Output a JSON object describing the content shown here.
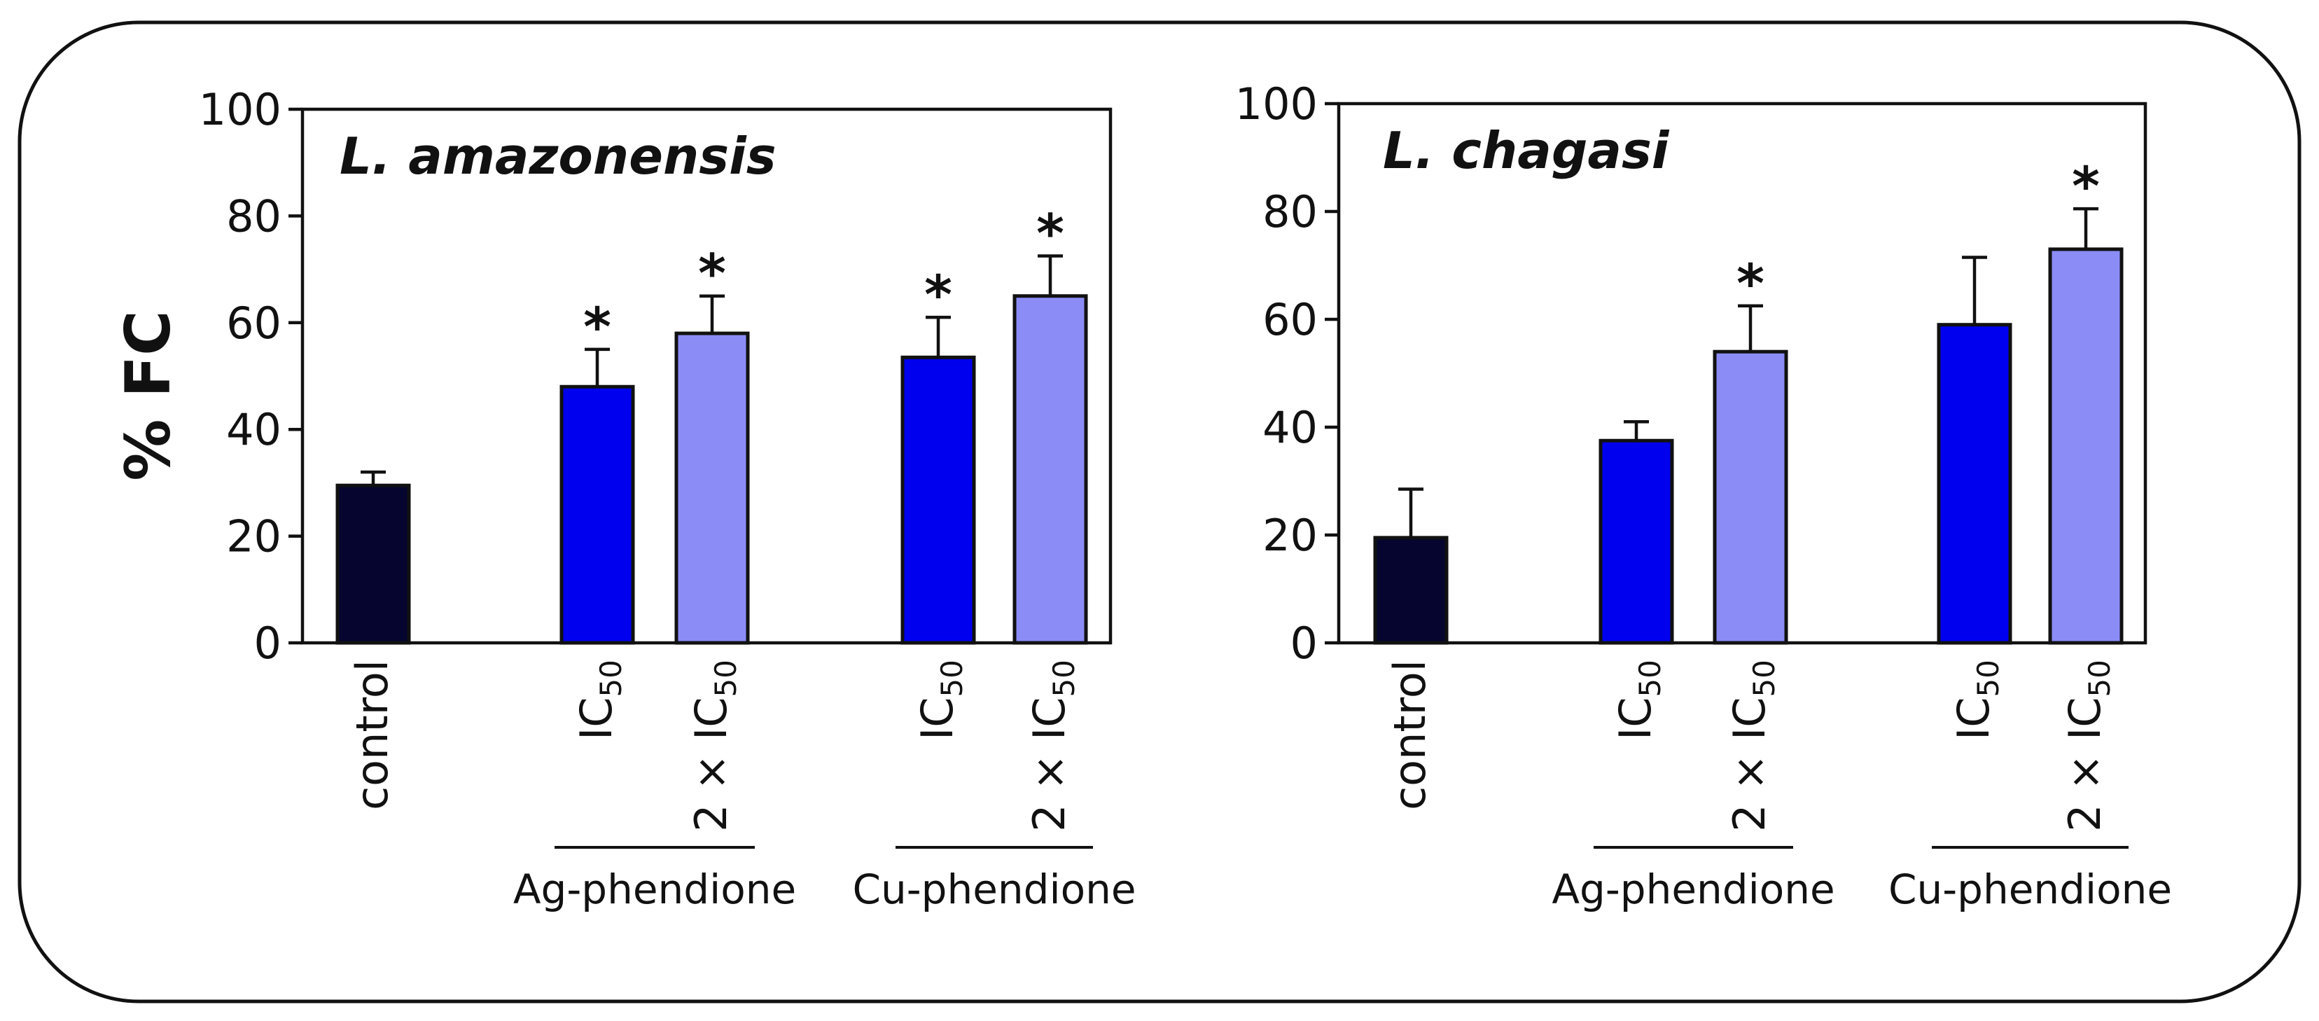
{
  "figure": {
    "y_axis_label": "% FC",
    "colors": {
      "control": "#050530",
      "ic50": "#0000ee",
      "two_ic50": "#8c8cf7"
    }
  },
  "chart_data": [
    {
      "type": "bar",
      "title": "L. amazonensis",
      "ylabel": "% FC",
      "ylim": [
        0,
        100
      ],
      "yticks": [
        0,
        20,
        40,
        60,
        80,
        100
      ],
      "categories": [
        "control",
        "IC50",
        "2 × IC50",
        "IC50",
        "2 × IC50"
      ],
      "groups": [
        {
          "label": "Ag-phendione",
          "categories": [
            1,
            2
          ]
        },
        {
          "label": "Cu-phendione",
          "categories": [
            3,
            4
          ]
        }
      ],
      "values": [
        29.5,
        48,
        58,
        53.5,
        65
      ],
      "errors": [
        2.5,
        7,
        7,
        7.5,
        7.5
      ],
      "significant": [
        "",
        "*",
        "*",
        "*",
        "*"
      ],
      "bar_colors": [
        "control",
        "ic50",
        "two_ic50",
        "ic50",
        "two_ic50"
      ]
    },
    {
      "type": "bar",
      "title": "L. chagasi",
      "ylabel": "",
      "ylim": [
        0,
        100
      ],
      "yticks": [
        0,
        20,
        40,
        60,
        80,
        100
      ],
      "categories": [
        "control",
        "IC50",
        "2 × IC50",
        "IC50",
        "2 × IC50"
      ],
      "groups": [
        {
          "label": "Ag-phendione",
          "categories": [
            1,
            2
          ]
        },
        {
          "label": "Cu-phendione",
          "categories": [
            3,
            4
          ]
        }
      ],
      "values": [
        19.5,
        37.5,
        54,
        59,
        73
      ],
      "errors": [
        9,
        3.5,
        8.5,
        12.5,
        7.5
      ],
      "significant": [
        "",
        "",
        "*",
        "",
        "*"
      ],
      "bar_colors": [
        "control",
        "ic50",
        "two_ic50",
        "ic50",
        "two_ic50"
      ]
    }
  ]
}
